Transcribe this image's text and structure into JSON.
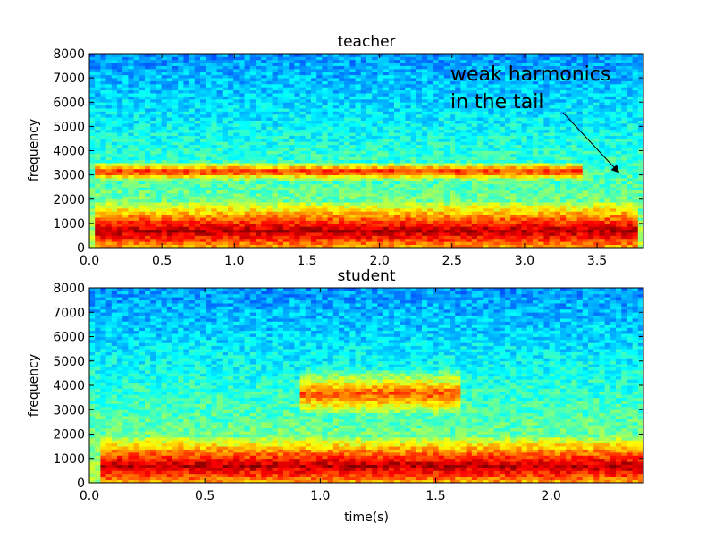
{
  "chart_data": [
    {
      "type": "heatmap",
      "title": "teacher",
      "ylabel": "frequency",
      "xlabel": "",
      "xlim": [
        0.0,
        3.82
      ],
      "ylim": [
        0,
        8000
      ],
      "x_ticks": [
        "0.0",
        "0.5",
        "1.0",
        "1.5",
        "2.0",
        "2.5",
        "3.0",
        "3.5"
      ],
      "x_tick_values": [
        0.0,
        0.5,
        1.0,
        1.5,
        2.0,
        2.5,
        3.0,
        3.5
      ],
      "y_ticks": [
        "0",
        "1000",
        "2000",
        "3000",
        "4000",
        "5000",
        "6000",
        "7000",
        "8000"
      ],
      "y_tick_values": [
        0,
        1000,
        2000,
        3000,
        4000,
        5000,
        6000,
        7000,
        8000
      ],
      "colormap": "jet",
      "strong_bands": [
        {
          "freq_low": 0,
          "freq_high": 1400,
          "t_start": 0.05,
          "t_end": 3.8,
          "level": 0.95
        },
        {
          "freq_low": 2900,
          "freq_high": 3400,
          "t_start": 0.05,
          "t_end": 3.4,
          "level": 0.85
        }
      ],
      "annotation": {
        "text_line1": "weak harmonics",
        "text_line2": "in the tail",
        "arrow_target": [
          3.65,
          3100
        ]
      }
    },
    {
      "type": "heatmap",
      "title": "student",
      "ylabel": "frequency",
      "xlabel": "time(s)",
      "xlim": [
        0.0,
        2.4
      ],
      "ylim": [
        0,
        8000
      ],
      "x_ticks": [
        "0.0",
        "0.5",
        "1.0",
        "1.5",
        "2.0"
      ],
      "x_tick_values": [
        0.0,
        0.5,
        1.0,
        1.5,
        2.0
      ],
      "y_ticks": [
        "0",
        "1000",
        "2000",
        "3000",
        "4000",
        "5000",
        "6000",
        "7000",
        "8000"
      ],
      "y_tick_values": [
        0,
        1000,
        2000,
        3000,
        4000,
        5000,
        6000,
        7000,
        8000
      ],
      "colormap": "jet",
      "strong_bands": [
        {
          "freq_low": 0,
          "freq_high": 1400,
          "t_start": 0.05,
          "t_end": 2.4,
          "level": 0.95
        },
        {
          "freq_low": 3000,
          "freq_high": 4300,
          "t_start": 0.9,
          "t_end": 1.6,
          "level": 0.8
        }
      ]
    }
  ]
}
